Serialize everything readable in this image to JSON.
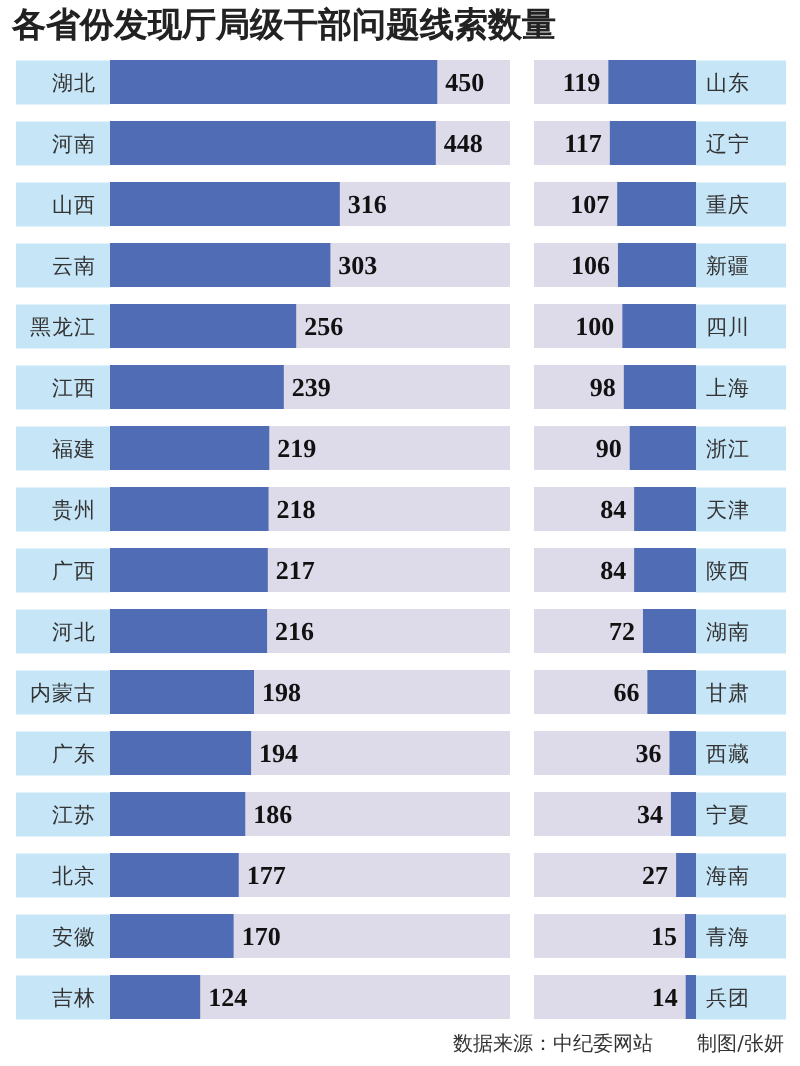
{
  "chart_data": [
    {
      "type": "bar",
      "orientation": "horizontal",
      "title": "各省份发现厅局级干部问题线索数量",
      "categories": [
        "湖北",
        "河南",
        "山西",
        "云南",
        "黑龙江",
        "江西",
        "福建",
        "贵州",
        "广西",
        "河北",
        "内蒙古",
        "广东",
        "江苏",
        "北京",
        "安徽",
        "吉林"
      ],
      "values": [
        450,
        448,
        316,
        303,
        256,
        239,
        219,
        218,
        217,
        216,
        198,
        194,
        186,
        177,
        170,
        124
      ],
      "color": "#4f6cb5",
      "xlim": [
        0,
        550
      ],
      "data_labels": true,
      "tick_labels": "y"
    },
    {
      "type": "bar",
      "orientation": "horizontal",
      "categories": [
        "山东",
        "辽宁",
        "重庆",
        "新疆",
        "四川",
        "上海",
        "浙江",
        "天津",
        "陕西",
        "湖南",
        "甘肃",
        "西藏",
        "宁夏",
        "海南",
        "青海",
        "兵团"
      ],
      "values": [
        119,
        117,
        107,
        106,
        100,
        98,
        90,
        84,
        84,
        72,
        66,
        36,
        34,
        27,
        15,
        14
      ],
      "color": "#4f6cb5",
      "xlim": [
        220,
        0
      ],
      "data_labels": true,
      "tick_labels": "y",
      "annotations": [
        "数据来源：中纪委网站",
        "制图/张妍"
      ]
    }
  ]
}
